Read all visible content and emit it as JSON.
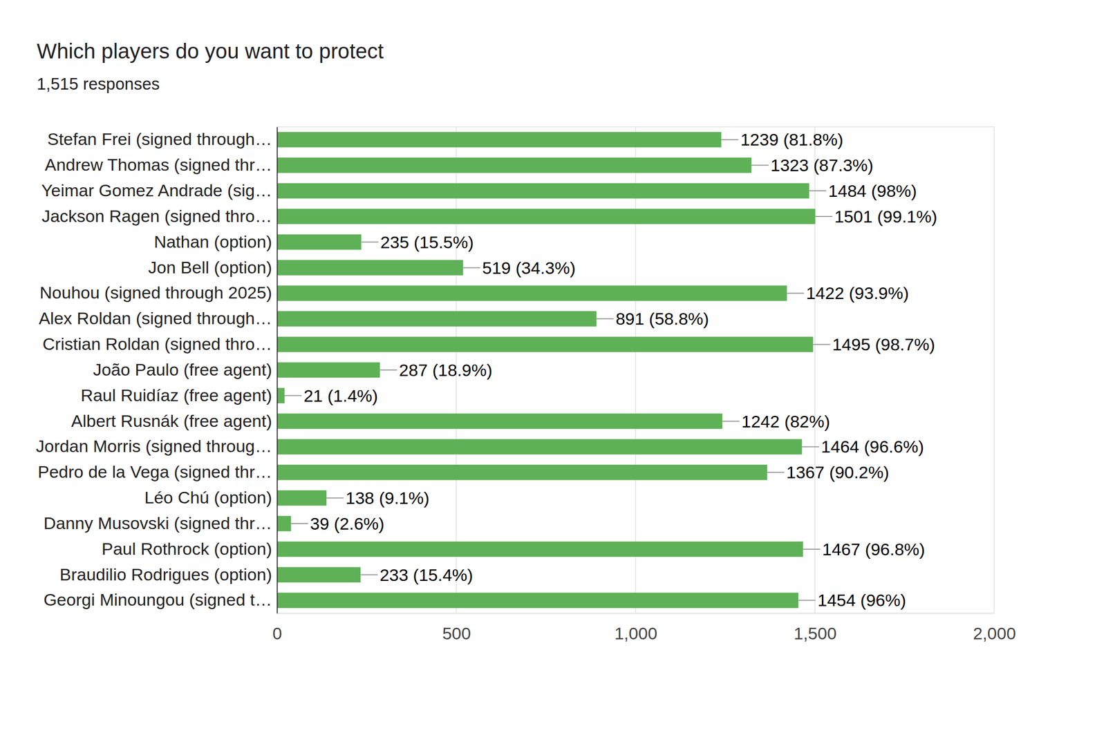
{
  "chart_data": {
    "type": "bar",
    "orientation": "horizontal",
    "title": "Which players do you want to protect",
    "subtitle": "1,515 responses",
    "categories": [
      "Stefan Frei (signed through…",
      "Andrew Thomas (signed thr…",
      "Yeimar Gomez Andrade (sig…",
      "Jackson Ragen (signed thro…",
      "Nathan (option)",
      "Jon Bell (option)",
      "Nouhou (signed through 2025)",
      "Alex Roldan (signed through…",
      "Cristian Roldan (signed thro…",
      "João Paulo (free agent)",
      "Raul Ruidíaz (free agent)",
      "Albert Rusnák (free agent)",
      "Jordan Morris (signed throug…",
      "Pedro de la Vega (signed thr…",
      "Léo Chú (option)",
      "Danny Musovski (signed thr…",
      "Paul Rothrock (option)",
      "Braudilio Rodrigues (option)",
      "Georgi Minoungou (signed t…"
    ],
    "values": [
      1239,
      1323,
      1484,
      1501,
      235,
      519,
      1422,
      891,
      1495,
      287,
      21,
      1242,
      1464,
      1367,
      138,
      39,
      1467,
      233,
      1454
    ],
    "value_labels": [
      "1239 (81.8%)",
      "1323 (87.3%)",
      "1484 (98%)",
      "1501 (99.1%)",
      "235 (15.5%)",
      "519 (34.3%)",
      "1422 (93.9%)",
      "891 (58.8%)",
      "1495 (98.7%)",
      "287 (18.9%)",
      "21 (1.4%)",
      "1242 (82%)",
      "1464 (96.6%)",
      "1367 (90.2%)",
      "138 (9.1%)",
      "39 (2.6%)",
      "1467 (96.8%)",
      "233 (15.4%)",
      "1454 (96%)"
    ],
    "data_labels": true,
    "color": "#5fb157",
    "xlim": [
      0,
      2000
    ],
    "xticks": [
      0,
      500,
      {
        "value": 1000,
        "label": "1,000"
      },
      {
        "value": 1500,
        "label": "1,500"
      },
      {
        "value": 2000,
        "label": "2,000"
      }
    ],
    "grid": true
  }
}
